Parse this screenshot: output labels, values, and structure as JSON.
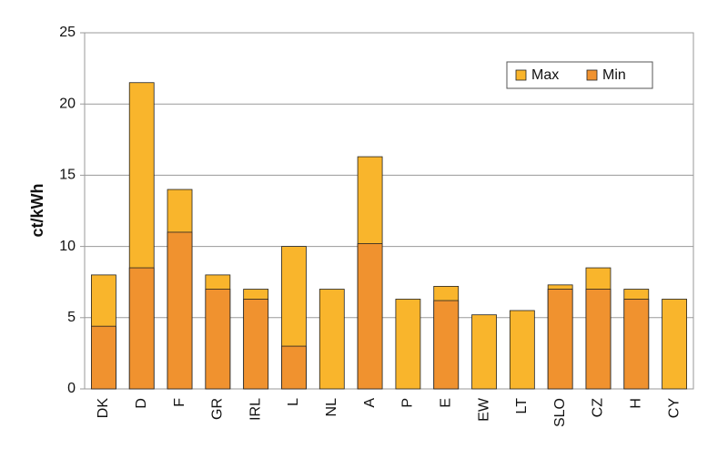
{
  "chart_data": {
    "type": "bar",
    "y_label": "ct/kWh",
    "categories": [
      "DK",
      "D",
      "F",
      "GR",
      "IRL",
      "L",
      "NL",
      "A",
      "P",
      "E",
      "EW",
      "LT",
      "SLO",
      "CZ",
      "H",
      "CY"
    ],
    "series": [
      {
        "name": "Max",
        "color": "#f9b52c",
        "values": [
          8,
          21.5,
          14,
          8,
          7,
          10,
          7,
          16.3,
          6.3,
          7.2,
          5.2,
          5.5,
          7.3,
          8.5,
          7,
          6.3
        ]
      },
      {
        "name": "Min",
        "color": "#f0922f",
        "values": [
          4.4,
          8.5,
          11,
          7,
          6.3,
          3,
          null,
          10.2,
          null,
          6.2,
          null,
          null,
          7,
          7,
          6.3,
          null
        ]
      }
    ],
    "ylim": [
      0,
      25
    ],
    "yticks": [
      0,
      5,
      10,
      15,
      20,
      25
    ],
    "grid": true,
    "legend": "upper right"
  }
}
